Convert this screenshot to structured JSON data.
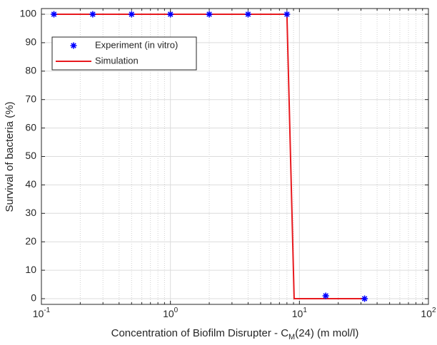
{
  "chart_data": {
    "type": "scatter-line",
    "xlabel": {
      "text": "Concentration of Biofilm Disrupter - C",
      "subscript": "M",
      "suffix": "(24) (m mol/l)"
    },
    "ylabel": "Survival of bacteria (%)",
    "xscale": "log",
    "xlim": [
      0.1,
      100
    ],
    "ylim": [
      -2,
      102
    ],
    "xticks": [
      {
        "value": 0.1,
        "label": "10",
        "exponent": "-1"
      },
      {
        "value": 1,
        "label": "10",
        "exponent": "0"
      },
      {
        "value": 10,
        "label": "10",
        "exponent": "1"
      },
      {
        "value": 100,
        "label": "10",
        "exponent": "2"
      }
    ],
    "xminorticks": [
      0.2,
      0.3,
      0.4,
      0.5,
      0.6,
      0.7,
      0.8,
      0.9,
      2,
      3,
      4,
      5,
      6,
      7,
      8,
      9,
      20,
      30,
      40,
      50,
      60,
      70,
      80,
      90
    ],
    "yticks": [
      0,
      10,
      20,
      30,
      40,
      50,
      60,
      70,
      80,
      90,
      100
    ],
    "grid": true,
    "legend": "upper left",
    "series": [
      {
        "name": "Experiment (in vitro)",
        "color": "#0000ff",
        "marker": "*",
        "x": [
          0.125,
          0.25,
          0.5,
          1,
          2,
          4,
          8,
          16,
          32
        ],
        "values": [
          100,
          100,
          100,
          100,
          100,
          100,
          100,
          1,
          0
        ]
      },
      {
        "name": "Simulation",
        "color": "#e8191e",
        "marker": "line",
        "x": [
          0.125,
          8,
          9.1,
          32
        ],
        "values": [
          100,
          100,
          0,
          0
        ]
      }
    ]
  }
}
